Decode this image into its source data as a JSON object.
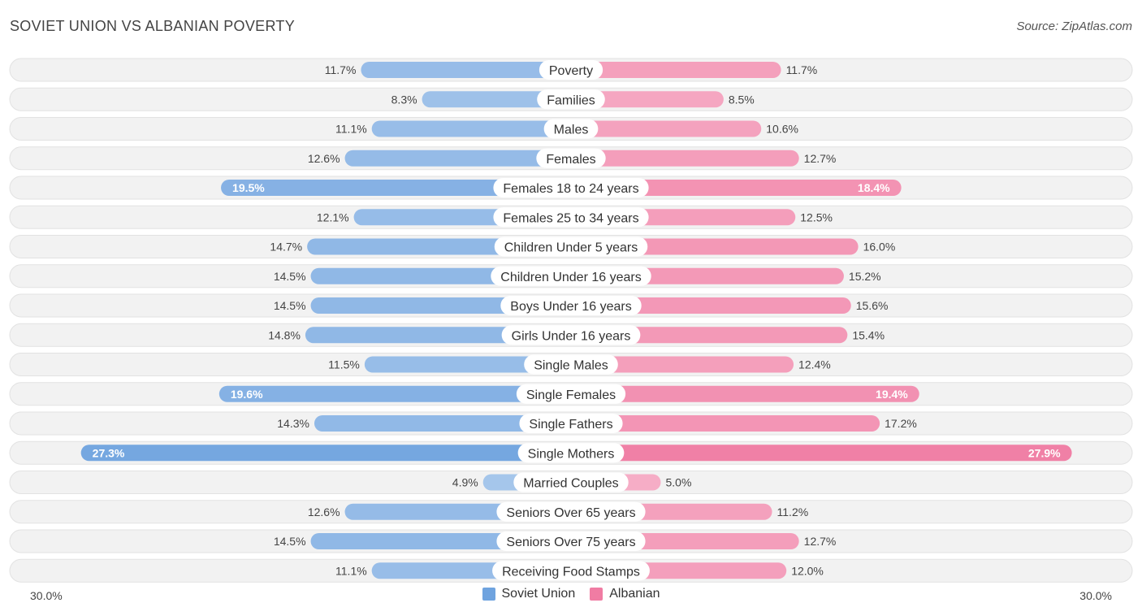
{
  "header": {
    "title": "SOVIET UNION VS ALBANIAN POVERTY",
    "source": "Source: ZipAtlas.com"
  },
  "legend": {
    "left_label": "Soviet Union",
    "right_label": "Albanian"
  },
  "axis": {
    "left_label": "30.0%",
    "right_label": "30.0%"
  },
  "colors": {
    "soviet": "#6fa3df",
    "albanian": "#f07ca3",
    "row_bg": "#f2f2f2",
    "row_border": "#e2e2e2"
  },
  "chart_data": {
    "type": "bar",
    "orientation": "horizontal-diverging",
    "title": "SOVIET UNION VS ALBANIAN POVERTY",
    "xlim": [
      -30,
      30
    ],
    "categories": [
      "Poverty",
      "Families",
      "Males",
      "Females",
      "Females 18 to 24 years",
      "Females 25 to 34 years",
      "Children Under 5 years",
      "Children Under 16 years",
      "Boys Under 16 years",
      "Girls Under 16 years",
      "Single Males",
      "Single Females",
      "Single Fathers",
      "Single Mothers",
      "Married Couples",
      "Seniors Over 65 years",
      "Seniors Over 75 years",
      "Receiving Food Stamps"
    ],
    "series": [
      {
        "name": "Soviet Union",
        "values": [
          11.7,
          8.3,
          11.1,
          12.6,
          19.5,
          12.1,
          14.7,
          14.5,
          14.5,
          14.8,
          11.5,
          19.6,
          14.3,
          27.3,
          4.9,
          12.6,
          14.5,
          11.1
        ],
        "labels": [
          "11.7%",
          "8.3%",
          "11.1%",
          "12.6%",
          "19.5%",
          "12.1%",
          "14.7%",
          "14.5%",
          "14.5%",
          "14.8%",
          "11.5%",
          "19.6%",
          "14.3%",
          "27.3%",
          "4.9%",
          "12.6%",
          "14.5%",
          "11.1%"
        ]
      },
      {
        "name": "Albanian",
        "values": [
          11.7,
          8.5,
          10.6,
          12.7,
          18.4,
          12.5,
          16.0,
          15.2,
          15.6,
          15.4,
          12.4,
          19.4,
          17.2,
          27.9,
          5.0,
          11.2,
          12.7,
          12.0
        ],
        "labels": [
          "11.7%",
          "8.5%",
          "10.6%",
          "12.7%",
          "18.4%",
          "12.5%",
          "16.0%",
          "15.2%",
          "15.6%",
          "15.4%",
          "12.4%",
          "19.4%",
          "17.2%",
          "27.9%",
          "5.0%",
          "11.2%",
          "12.7%",
          "12.0%"
        ]
      }
    ]
  }
}
